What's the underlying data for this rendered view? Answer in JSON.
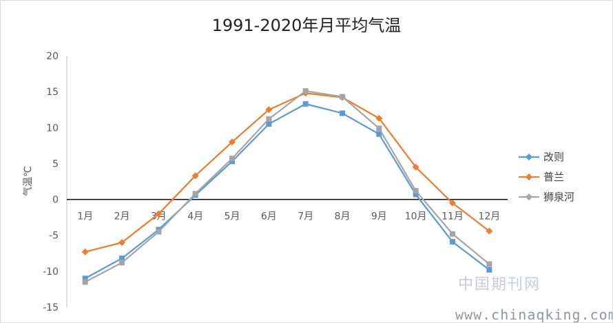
{
  "chart_data": {
    "type": "line",
    "title": "1991-2020年月平均气温",
    "ylabel": "气温℃",
    "xlabel": "",
    "ylim": [
      -15,
      20
    ],
    "yticks": [
      20,
      15,
      10,
      5,
      0,
      -5,
      -10,
      -15
    ],
    "categories": [
      "1月",
      "2月",
      "3月",
      "4月",
      "5月",
      "6月",
      "7月",
      "8月",
      "9月",
      "10月",
      "11月",
      "12月"
    ],
    "series": [
      {
        "name": "改则",
        "color": "#5b9bd5",
        "marker": "square",
        "values": [
          -11.0,
          -8.2,
          -4.2,
          0.6,
          5.3,
          10.5,
          13.3,
          12.0,
          9.1,
          0.7,
          -5.9,
          -9.8
        ]
      },
      {
        "name": "普兰",
        "color": "#ed7d31",
        "marker": "diamond",
        "values": [
          -7.3,
          -6.0,
          -2.0,
          3.3,
          8.0,
          12.5,
          14.8,
          14.2,
          11.3,
          4.5,
          -0.5,
          -4.4
        ]
      },
      {
        "name": "狮泉河",
        "color": "#a5a5a5",
        "marker": "square",
        "values": [
          -11.5,
          -8.8,
          -4.5,
          0.8,
          5.7,
          11.2,
          15.1,
          14.3,
          9.9,
          1.2,
          -4.8,
          -9.0
        ]
      }
    ],
    "grid": false,
    "legend_position": "right"
  },
  "watermark": {
    "site_cn": "中国期刊网",
    "url": "www.chinaqking.com"
  }
}
